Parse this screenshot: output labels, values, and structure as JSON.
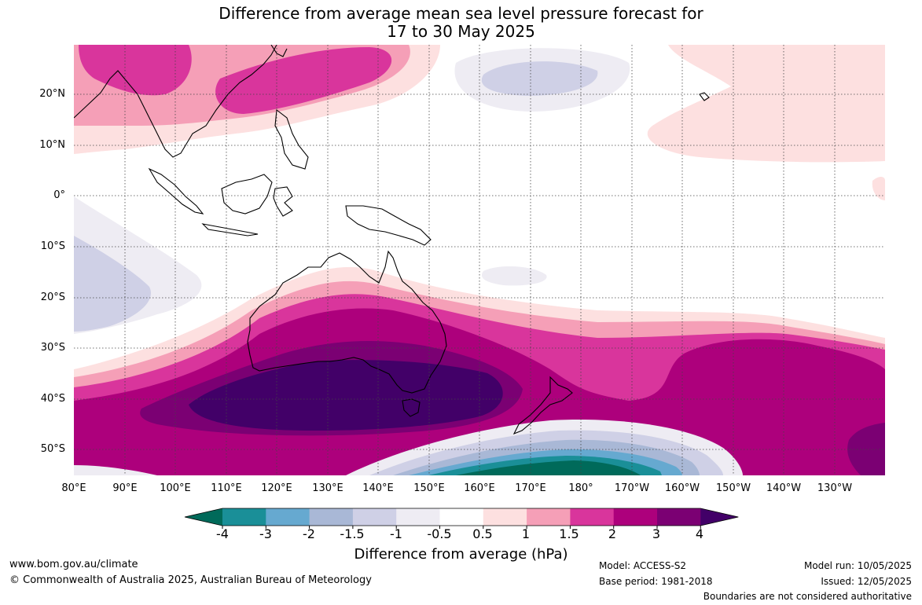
{
  "title": {
    "line1": "Difference from average mean sea level pressure forecast for",
    "line2": "17 to 30 May 2025"
  },
  "map": {
    "lat_labels": [
      "20°N",
      "10°N",
      "0°",
      "10°S",
      "20°S",
      "30°S",
      "40°S",
      "50°S"
    ],
    "lon_labels": [
      "80°E",
      "90°E",
      "100°E",
      "110°E",
      "120°E",
      "130°E",
      "140°E",
      "150°E",
      "160°E",
      "170°E",
      "180°",
      "170°W",
      "160°W",
      "150°W",
      "140°W",
      "130°W"
    ]
  },
  "colorbar": {
    "ticks": [
      "-4",
      "-3",
      "-2",
      "-1.5",
      "-1",
      "-0.5",
      "0.5",
      "1",
      "1.5",
      "2",
      "3",
      "4"
    ],
    "colors": [
      "#006a5a",
      "#1a8f98",
      "#66a9d0",
      "#a9b8d6",
      "#cfd0e6",
      "#eeecf3",
      "#ffffff",
      "#fde0e0",
      "#f59fb7",
      "#d9359c",
      "#ad007c",
      "#7b0073",
      "#420068"
    ],
    "label": "Difference from average (hPa)"
  },
  "footer": {
    "website": "www.bom.gov.au/climate",
    "copyright": "© Commonwealth of Australia 2025, Australian Bureau of Meteorology",
    "model": "Model: ACCESS-S2",
    "base_period": "Base period: 1981-2018",
    "model_run": "Model run: 10/05/2025",
    "issued": "Issued: 12/05/2025",
    "disclaimer": "Boundaries are not considered authoritative"
  }
}
